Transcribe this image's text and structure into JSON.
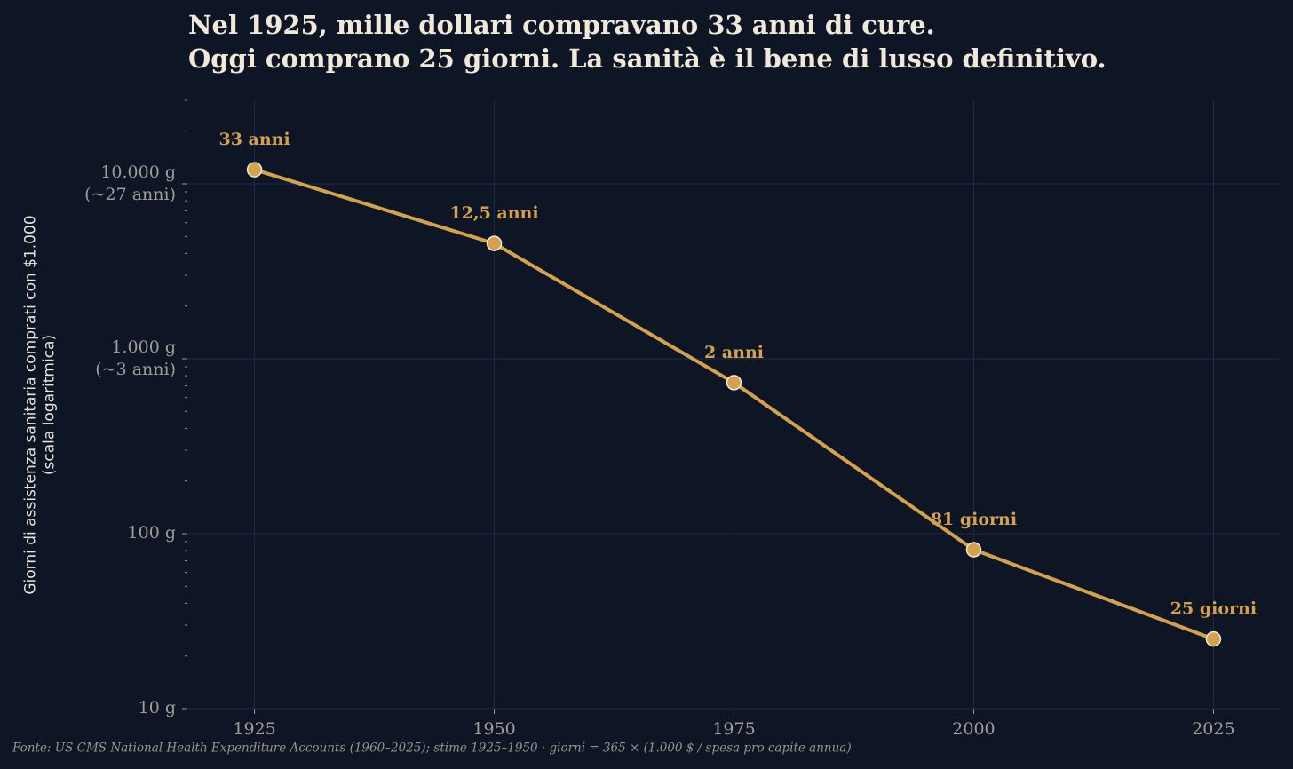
{
  "chart_data": {
    "type": "line",
    "title": "Nel 1925, mille dollari compravano 33 anni di cure.\nOggi comprano 25 giorni. La sanità è il bene di lusso definitivo.",
    "y_label": "Giorni di assistenza sanitaria comprati con $1.000\n(scala logaritmica)",
    "source": "Fonte: US CMS National Health Expenditure Accounts (1960–2025); stime 1925–1950 · giorni = 365 × (1.000 $ / spesa pro capite annua)",
    "x": [
      1925,
      1950,
      1975,
      2000,
      2025
    ],
    "values": [
      12045,
      4562.5,
      730,
      81,
      25
    ],
    "value_labels": [
      "33 anni",
      "12,5 anni",
      "2 anni",
      "81 giorni",
      "25 giorni"
    ],
    "color": "#d4a24c",
    "log_y": true,
    "grid": true,
    "xlim": [
      1918,
      2032
    ],
    "ylim": [
      10,
      30000
    ],
    "xticks": [
      1925,
      1950,
      1975,
      2000,
      2025
    ],
    "yticks": [
      {
        "value": 10,
        "label": "10 g"
      },
      {
        "value": 100,
        "label": "100 g"
      },
      {
        "value": 1000,
        "label": "1.000 g\n(~3 anni)"
      },
      {
        "value": 10000,
        "label": "10.000 g\n(~27 anni)"
      }
    ],
    "yticks_minor": [
      20,
      30,
      40,
      50,
      60,
      70,
      80,
      90,
      200,
      300,
      400,
      500,
      600,
      700,
      800,
      900,
      2000,
      3000,
      4000,
      5000,
      6000,
      7000,
      8000,
      9000,
      20000,
      30000
    ]
  }
}
